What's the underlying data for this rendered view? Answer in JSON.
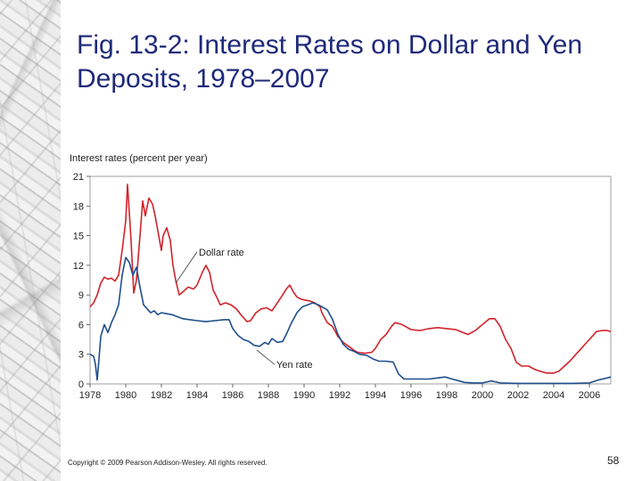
{
  "slide": {
    "title": "Fig. 13-2: Interest Rates on Dollar and Yen Deposits, 1978–2007",
    "copyright": "Copyright © 2009 Pearson Addison-Wesley. All rights reserved.",
    "page_number": "58"
  },
  "chart_data": {
    "type": "line",
    "title": "",
    "ylabel": "Interest rates (percent per year)",
    "xlabel": "",
    "ylim": [
      0,
      21
    ],
    "xlim": [
      1978,
      2007.2
    ],
    "yticks": [
      0,
      3,
      6,
      9,
      12,
      15,
      18,
      21
    ],
    "xticks": [
      1978,
      1980,
      1982,
      1984,
      1986,
      1988,
      1990,
      1992,
      1994,
      1996,
      1998,
      2000,
      2002,
      2004,
      2006
    ],
    "grid": false,
    "annotations": [
      {
        "text": "Dollar rate",
        "series": "Dollar rate"
      },
      {
        "text": "Yen rate",
        "series": "Yen rate"
      }
    ],
    "series": [
      {
        "name": "Dollar rate",
        "color": "#d2232a",
        "points": [
          [
            1978.0,
            7.8
          ],
          [
            1978.2,
            8.2
          ],
          [
            1978.4,
            9.0
          ],
          [
            1978.6,
            10.2
          ],
          [
            1978.8,
            10.8
          ],
          [
            1979.0,
            10.6
          ],
          [
            1979.2,
            10.7
          ],
          [
            1979.4,
            10.4
          ],
          [
            1979.6,
            11.0
          ],
          [
            1979.8,
            13.5
          ],
          [
            1980.0,
            16.5
          ],
          [
            1980.1,
            20.2
          ],
          [
            1980.3,
            14.5
          ],
          [
            1980.45,
            9.2
          ],
          [
            1980.6,
            10.5
          ],
          [
            1980.8,
            15.0
          ],
          [
            1980.95,
            18.5
          ],
          [
            1981.1,
            17.0
          ],
          [
            1981.3,
            18.8
          ],
          [
            1981.5,
            18.2
          ],
          [
            1981.65,
            17.0
          ],
          [
            1981.8,
            15.5
          ],
          [
            1982.0,
            13.5
          ],
          [
            1982.1,
            15.0
          ],
          [
            1982.3,
            15.8
          ],
          [
            1982.5,
            14.5
          ],
          [
            1982.65,
            12.0
          ],
          [
            1982.8,
            10.5
          ],
          [
            1983.0,
            9.0
          ],
          [
            1983.2,
            9.3
          ],
          [
            1983.5,
            9.8
          ],
          [
            1983.8,
            9.6
          ],
          [
            1984.0,
            10.0
          ],
          [
            1984.3,
            11.3
          ],
          [
            1984.5,
            12.0
          ],
          [
            1984.7,
            11.3
          ],
          [
            1984.9,
            9.5
          ],
          [
            1985.1,
            8.8
          ],
          [
            1985.3,
            8.0
          ],
          [
            1985.6,
            8.2
          ],
          [
            1985.9,
            8.0
          ],
          [
            1986.2,
            7.6
          ],
          [
            1986.5,
            6.9
          ],
          [
            1986.8,
            6.3
          ],
          [
            1987.0,
            6.4
          ],
          [
            1987.3,
            7.2
          ],
          [
            1987.6,
            7.6
          ],
          [
            1987.9,
            7.7
          ],
          [
            1988.2,
            7.4
          ],
          [
            1988.5,
            8.2
          ],
          [
            1988.8,
            9.0
          ],
          [
            1989.0,
            9.6
          ],
          [
            1989.2,
            10.0
          ],
          [
            1989.4,
            9.3
          ],
          [
            1989.6,
            8.8
          ],
          [
            1989.8,
            8.6
          ],
          [
            1990.0,
            8.5
          ],
          [
            1990.3,
            8.4
          ],
          [
            1990.6,
            8.2
          ],
          [
            1990.9,
            7.8
          ],
          [
            1991.0,
            7.2
          ],
          [
            1991.3,
            6.2
          ],
          [
            1991.6,
            5.8
          ],
          [
            1991.9,
            4.8
          ],
          [
            1992.2,
            4.2
          ],
          [
            1992.5,
            3.8
          ],
          [
            1992.8,
            3.4
          ],
          [
            1993.0,
            3.2
          ],
          [
            1993.4,
            3.1
          ],
          [
            1993.8,
            3.2
          ],
          [
            1994.0,
            3.6
          ],
          [
            1994.3,
            4.5
          ],
          [
            1994.6,
            5.0
          ],
          [
            1994.9,
            5.8
          ],
          [
            1995.1,
            6.2
          ],
          [
            1995.5,
            6.0
          ],
          [
            1995.8,
            5.7
          ],
          [
            1996.0,
            5.5
          ],
          [
            1996.5,
            5.4
          ],
          [
            1997.0,
            5.6
          ],
          [
            1997.5,
            5.7
          ],
          [
            1998.0,
            5.6
          ],
          [
            1998.5,
            5.5
          ],
          [
            1998.9,
            5.2
          ],
          [
            1999.2,
            5.0
          ],
          [
            1999.6,
            5.4
          ],
          [
            2000.0,
            6.0
          ],
          [
            2000.4,
            6.6
          ],
          [
            2000.7,
            6.6
          ],
          [
            2001.0,
            5.8
          ],
          [
            2001.3,
            4.5
          ],
          [
            2001.6,
            3.6
          ],
          [
            2001.9,
            2.2
          ],
          [
            2002.2,
            1.8
          ],
          [
            2002.6,
            1.8
          ],
          [
            2002.9,
            1.5
          ],
          [
            2003.2,
            1.3
          ],
          [
            2003.6,
            1.1
          ],
          [
            2004.0,
            1.1
          ],
          [
            2004.3,
            1.3
          ],
          [
            2004.6,
            1.8
          ],
          [
            2004.9,
            2.3
          ],
          [
            2005.2,
            2.9
          ],
          [
            2005.5,
            3.5
          ],
          [
            2005.8,
            4.1
          ],
          [
            2006.1,
            4.7
          ],
          [
            2006.4,
            5.3
          ],
          [
            2006.7,
            5.4
          ],
          [
            2007.0,
            5.4
          ],
          [
            2007.2,
            5.3
          ]
        ]
      },
      {
        "name": "Yen rate",
        "color": "#1f4f8c",
        "points": [
          [
            1978.0,
            3.0
          ],
          [
            1978.2,
            2.8
          ],
          [
            1978.3,
            2.0
          ],
          [
            1978.4,
            0.4
          ],
          [
            1978.5,
            2.5
          ],
          [
            1978.6,
            4.8
          ],
          [
            1978.8,
            6.0
          ],
          [
            1979.0,
            5.2
          ],
          [
            1979.2,
            6.2
          ],
          [
            1979.4,
            7.0
          ],
          [
            1979.6,
            8.0
          ],
          [
            1979.8,
            11.0
          ],
          [
            1980.0,
            12.8
          ],
          [
            1980.2,
            12.3
          ],
          [
            1980.4,
            11.0
          ],
          [
            1980.6,
            11.8
          ],
          [
            1980.8,
            9.8
          ],
          [
            1981.0,
            8.0
          ],
          [
            1981.2,
            7.6
          ],
          [
            1981.4,
            7.2
          ],
          [
            1981.6,
            7.4
          ],
          [
            1981.8,
            7.0
          ],
          [
            1982.0,
            7.2
          ],
          [
            1982.3,
            7.1
          ],
          [
            1982.6,
            7.0
          ],
          [
            1982.9,
            6.8
          ],
          [
            1983.2,
            6.6
          ],
          [
            1983.6,
            6.5
          ],
          [
            1984.0,
            6.4
          ],
          [
            1984.5,
            6.3
          ],
          [
            1985.0,
            6.4
          ],
          [
            1985.5,
            6.5
          ],
          [
            1985.8,
            6.5
          ],
          [
            1986.0,
            5.6
          ],
          [
            1986.3,
            4.9
          ],
          [
            1986.6,
            4.5
          ],
          [
            1986.9,
            4.3
          ],
          [
            1987.2,
            3.9
          ],
          [
            1987.5,
            3.8
          ],
          [
            1987.8,
            4.2
          ],
          [
            1988.0,
            4.0
          ],
          [
            1988.2,
            4.6
          ],
          [
            1988.5,
            4.2
          ],
          [
            1988.8,
            4.3
          ],
          [
            1989.0,
            5.0
          ],
          [
            1989.3,
            6.2
          ],
          [
            1989.6,
            7.2
          ],
          [
            1989.9,
            7.8
          ],
          [
            1990.2,
            8.0
          ],
          [
            1990.5,
            8.2
          ],
          [
            1990.8,
            8.0
          ],
          [
            1991.0,
            7.8
          ],
          [
            1991.3,
            7.5
          ],
          [
            1991.6,
            6.5
          ],
          [
            1991.9,
            5.0
          ],
          [
            1992.2,
            4.0
          ],
          [
            1992.5,
            3.5
          ],
          [
            1992.8,
            3.3
          ],
          [
            1993.1,
            3.0
          ],
          [
            1993.5,
            2.9
          ],
          [
            1993.9,
            2.5
          ],
          [
            1994.2,
            2.3
          ],
          [
            1994.6,
            2.3
          ],
          [
            1995.0,
            2.2
          ],
          [
            1995.3,
            1.0
          ],
          [
            1995.6,
            0.5
          ],
          [
            1996.0,
            0.5
          ],
          [
            1996.5,
            0.5
          ],
          [
            1997.0,
            0.5
          ],
          [
            1997.5,
            0.6
          ],
          [
            1997.9,
            0.7
          ],
          [
            1998.3,
            0.5
          ],
          [
            1998.7,
            0.3
          ],
          [
            1999.0,
            0.15
          ],
          [
            1999.5,
            0.1
          ],
          [
            2000.0,
            0.1
          ],
          [
            2000.5,
            0.3
          ],
          [
            2001.0,
            0.1
          ],
          [
            2002.0,
            0.05
          ],
          [
            2003.0,
            0.05
          ],
          [
            2004.0,
            0.05
          ],
          [
            2005.0,
            0.05
          ],
          [
            2006.0,
            0.1
          ],
          [
            2006.5,
            0.4
          ],
          [
            2007.0,
            0.6
          ],
          [
            2007.2,
            0.7
          ]
        ]
      }
    ]
  }
}
